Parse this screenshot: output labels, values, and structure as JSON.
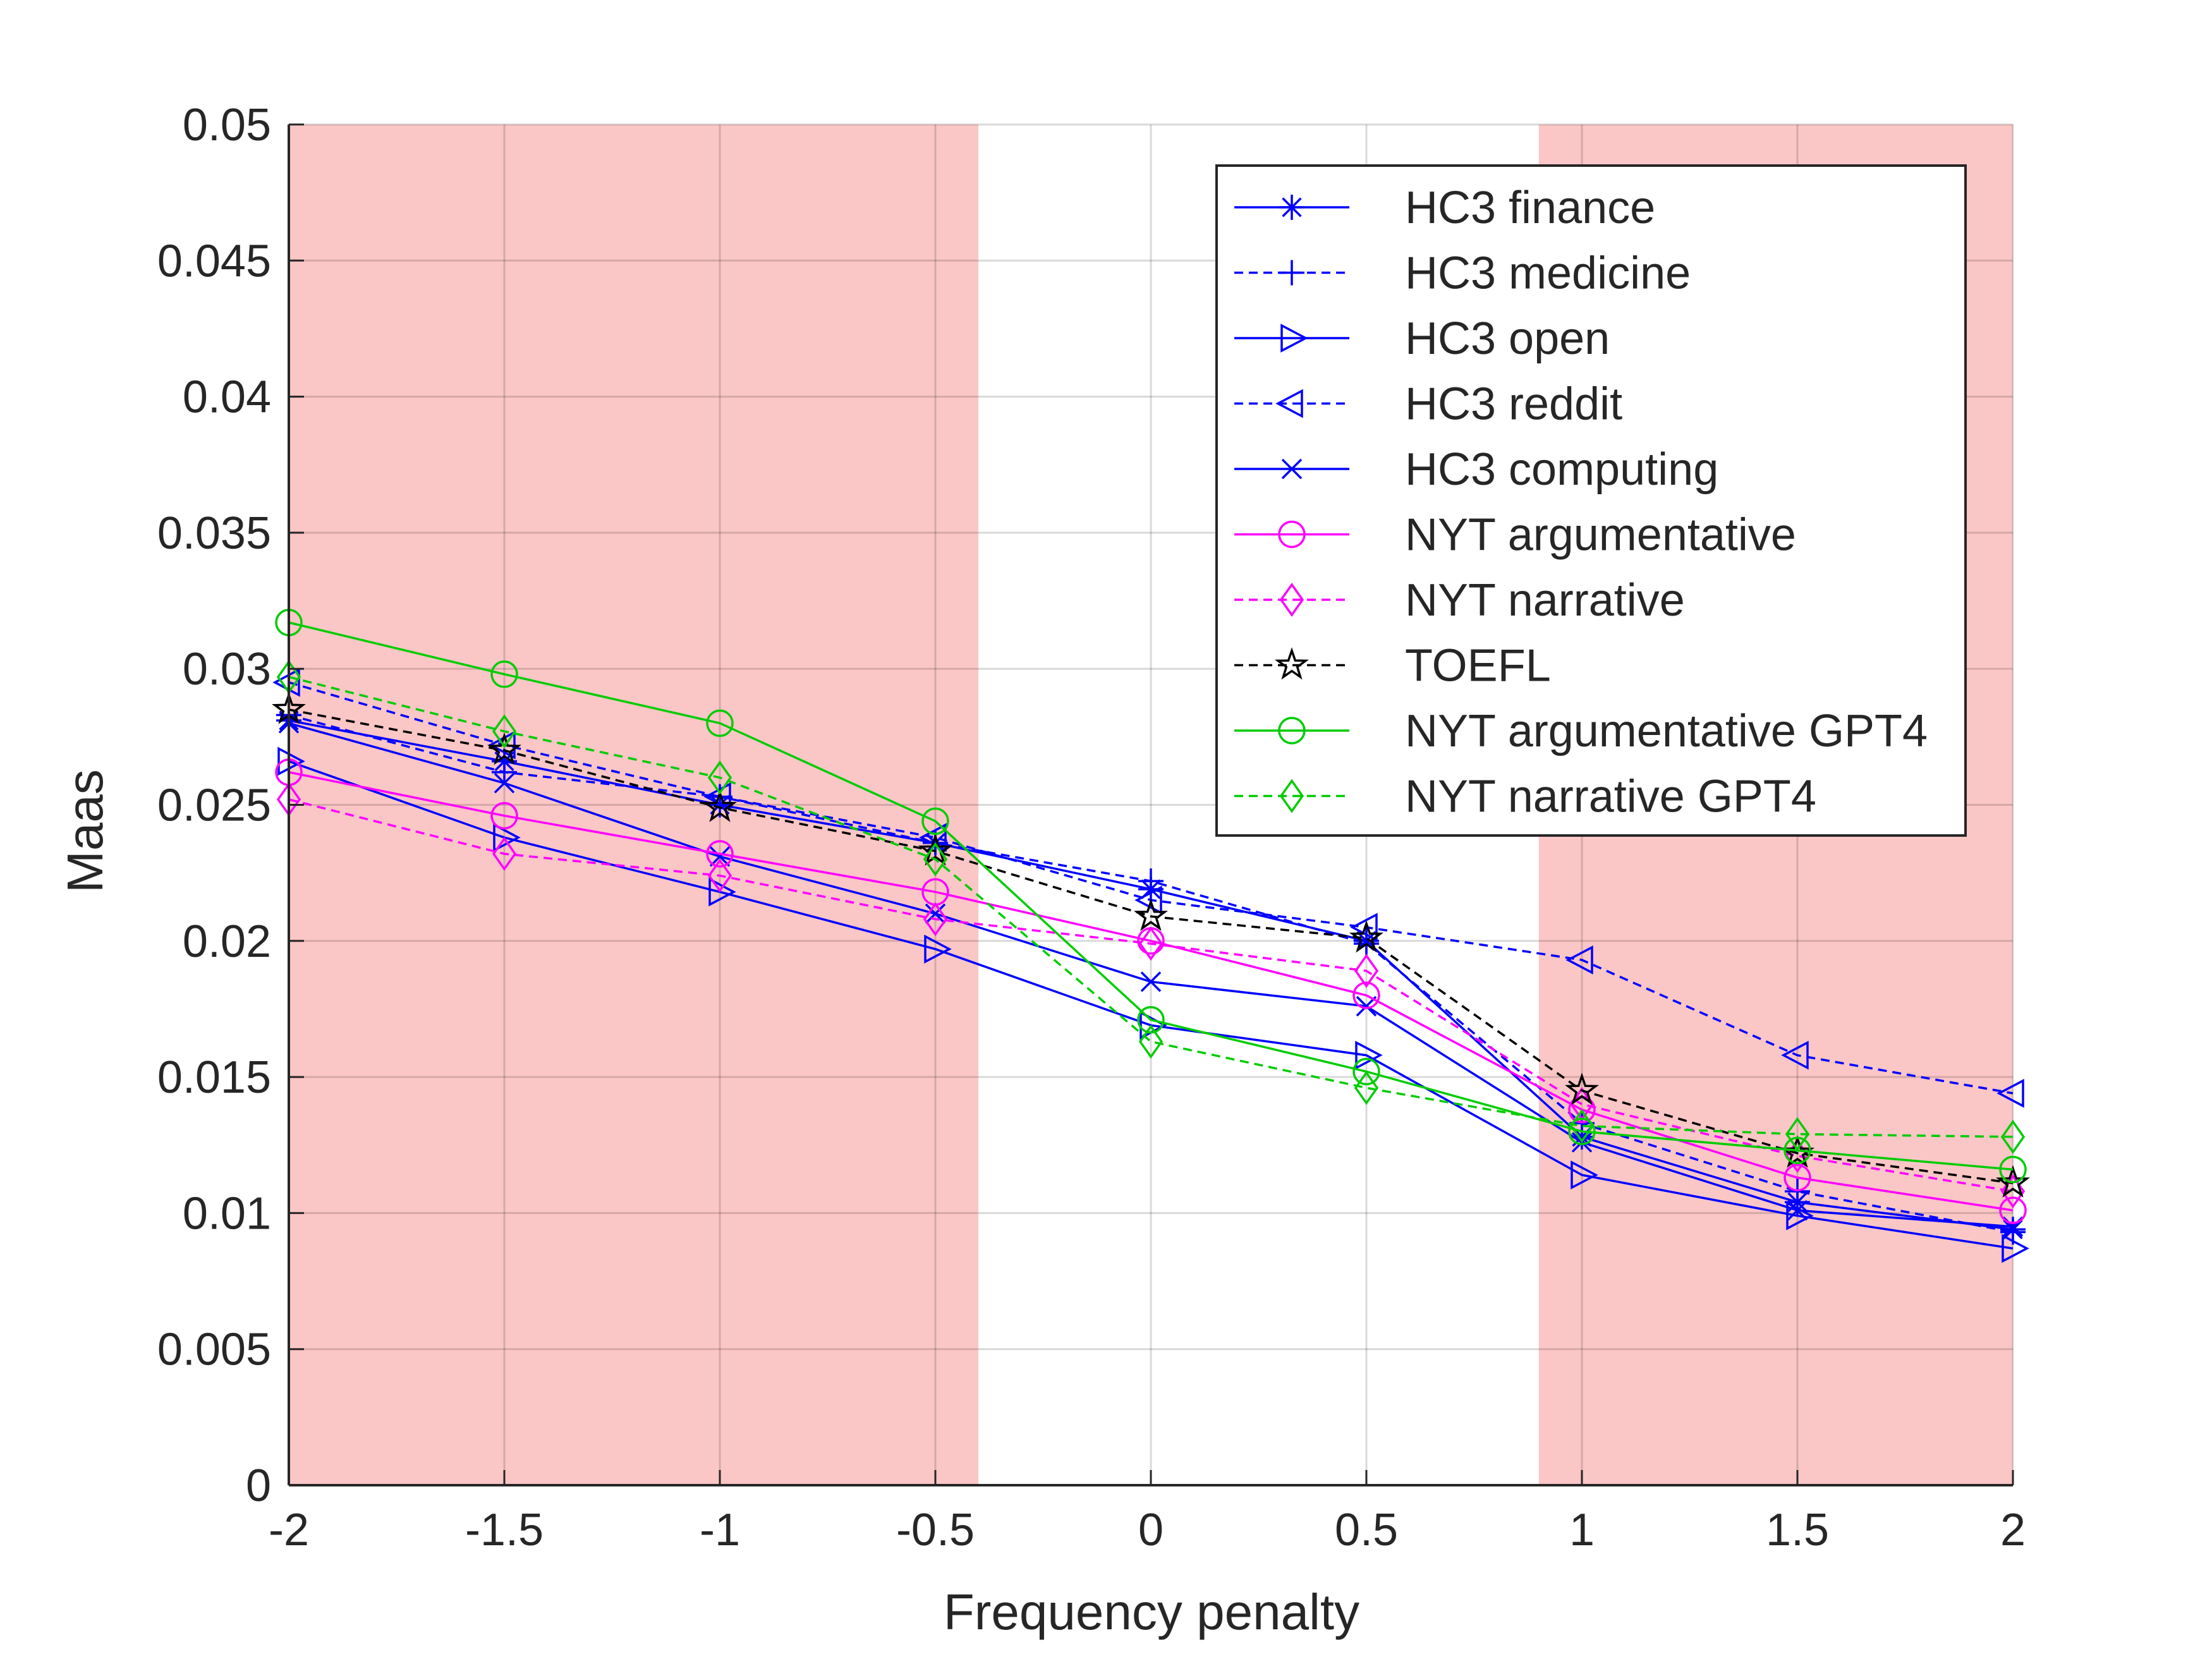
{
  "chart_data": {
    "type": "line",
    "title": "",
    "xlabel": "Frequency penalty",
    "ylabel": "Maas",
    "xlim": [
      -2,
      2
    ],
    "ylim": [
      0,
      0.05
    ],
    "x_ticks": [
      -2,
      -1.5,
      -1,
      -0.5,
      0,
      0.5,
      1,
      1.5,
      2
    ],
    "x_tick_labels": [
      "-2",
      "-1.5",
      "-1",
      "-0.5",
      "0",
      "0.5",
      "1",
      "1.5",
      "2"
    ],
    "y_ticks": [
      0,
      0.005,
      0.01,
      0.015,
      0.02,
      0.025,
      0.03,
      0.035,
      0.04,
      0.045,
      0.05
    ],
    "y_tick_labels": [
      "0",
      "0.005",
      "0.01",
      "0.015",
      "0.02",
      "0.025",
      "0.03",
      "0.035",
      "0.04",
      "0.045",
      "0.05"
    ],
    "grid": true,
    "legend_position": "top-right",
    "shaded_regions": [
      {
        "from": -2,
        "to": -0.4,
        "color": "#fbc6c6"
      },
      {
        "from": 0.9,
        "to": 2,
        "color": "#fbc6c6"
      }
    ],
    "x": [
      -2,
      -1.5,
      -1,
      -0.5,
      0,
      0.5,
      1,
      1.5,
      2
    ],
    "series": [
      {
        "name": "HC3 finance",
        "color": "#0000ff",
        "dash": "solid",
        "marker": "asterisk",
        "values": [
          0.0281,
          0.0266,
          0.025,
          0.0236,
          0.0219,
          0.02,
          0.0128,
          0.0104,
          0.0094
        ]
      },
      {
        "name": "HC3 medicine",
        "color": "#0000ff",
        "dash": "dashed",
        "marker": "plus",
        "values": [
          0.0283,
          0.0262,
          0.0253,
          0.0236,
          0.0222,
          0.0199,
          0.0133,
          0.0108,
          0.0093
        ]
      },
      {
        "name": "HC3 open",
        "color": "#0000ff",
        "dash": "solid",
        "marker": "triangle-right",
        "values": [
          0.0266,
          0.0238,
          0.0218,
          0.0197,
          0.0169,
          0.0158,
          0.0114,
          0.0099,
          0.0087
        ]
      },
      {
        "name": "HC3 reddit",
        "color": "#0000ff",
        "dash": "dashed",
        "marker": "triangle-left",
        "values": [
          0.0295,
          0.0272,
          0.0253,
          0.0238,
          0.0215,
          0.0205,
          0.0193,
          0.0158,
          0.0144
        ]
      },
      {
        "name": "HC3 computing",
        "color": "#0000ff",
        "dash": "solid",
        "marker": "x",
        "values": [
          0.028,
          0.0258,
          0.0231,
          0.021,
          0.0185,
          0.0176,
          0.0126,
          0.0101,
          0.0095
        ]
      },
      {
        "name": "NYT argumentative",
        "color": "#ff00ff",
        "dash": "solid",
        "marker": "circle",
        "values": [
          0.0262,
          0.0246,
          0.0232,
          0.0218,
          0.02,
          0.018,
          0.0138,
          0.0113,
          0.0101
        ]
      },
      {
        "name": "NYT narrative",
        "color": "#ff00ff",
        "dash": "dashed",
        "marker": "diamond",
        "values": [
          0.0252,
          0.0232,
          0.0224,
          0.0208,
          0.0199,
          0.0189,
          0.014,
          0.0121,
          0.0108
        ]
      },
      {
        "name": "TOEFL",
        "color": "#000000",
        "dash": "dashed",
        "marker": "star",
        "values": [
          0.0285,
          0.027,
          0.0249,
          0.0233,
          0.0209,
          0.0201,
          0.0145,
          0.0122,
          0.0111
        ]
      },
      {
        "name": "NYT argumentative GPT4",
        "color": "#00cc00",
        "dash": "solid",
        "marker": "circle",
        "values": [
          0.0317,
          0.0298,
          0.028,
          0.0244,
          0.0171,
          0.0152,
          0.013,
          0.0123,
          0.0116
        ]
      },
      {
        "name": "NYT narrative GPT4",
        "color": "#00cc00",
        "dash": "dashed",
        "marker": "diamond",
        "values": [
          0.0297,
          0.0277,
          0.026,
          0.023,
          0.0163,
          0.0146,
          0.0132,
          0.0129,
          0.0128
        ]
      }
    ]
  }
}
